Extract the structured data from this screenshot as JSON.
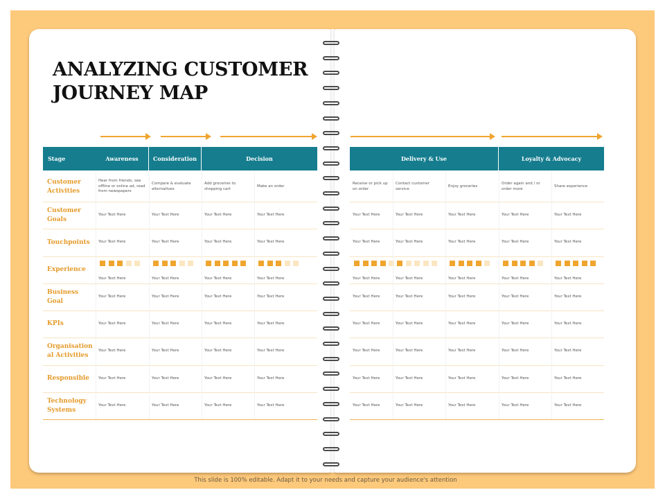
{
  "title_lines": [
    "ANALYZING CUSTOMER",
    "JOURNEY MAP"
  ],
  "stages": {
    "stage_label": "Stage",
    "awareness": "Awareness",
    "consideration": "Consideration",
    "decision": "Decision",
    "delivery": "Delivery & Use",
    "loyalty": "Loyalty & Advocacy"
  },
  "rows": [
    {
      "label": "Customer Activities",
      "cells": [
        "Hear from friends, see offline or online ad, read from newspapers",
        "Compare & evaluate alternatives",
        "Add groceries to shopping cart",
        "Make an order",
        "Receive or pick up on order",
        "Contact customer service",
        "Enjoy groceries",
        "Order again and / or order more",
        "Share experience"
      ]
    },
    {
      "label": "Customer Goals",
      "cells": [
        "Your Text Here",
        "Your Text Here",
        "Your Text Here",
        "Your Text Here",
        "Your Text Here",
        "Your Text Here",
        "Your Text Here",
        "Your Text Here",
        "Your Text Here"
      ]
    },
    {
      "label": "Touchpoints",
      "cells": [
        "Your Text Here",
        "Your Text Here",
        "Your Text Here",
        "Your Text Here",
        "Your Text Here",
        "Your Text Here",
        "Your Text Here",
        "Your Text Here",
        "Your Text Here"
      ]
    },
    {
      "label": "Experience",
      "cells": [
        "Your Text Here",
        "Your Text Here",
        "Your Text Here",
        "Your Text Here",
        "Your Text Here",
        "Your Text Here",
        "Your Text Here",
        "Your Text Here",
        "Your Text Here"
      ],
      "ratings": [
        3,
        3,
        5,
        3,
        4,
        1,
        4,
        4,
        5
      ],
      "rating_max": 5
    },
    {
      "label": "Business Goal",
      "cells": [
        "Your Text Here",
        "Your Text Here",
        "Your Text Here",
        "Your Text Here",
        "Your Text Here",
        "Your Text Here",
        "Your Text Here",
        "Your Text Here",
        "Your Text Here"
      ]
    },
    {
      "label": "KPIs",
      "cells": [
        "Your Text Here",
        "Your Text Here",
        "Your Text Here",
        "Your Text Here",
        "Your Text Here",
        "Your Text Here",
        "Your Text Here",
        "Your Text Here",
        "Your Text Here"
      ]
    },
    {
      "label": "Organisation al Activities",
      "cells": [
        "Your Text Here",
        "Your Text Here",
        "Your Text Here",
        "Your Text Here",
        "Your Text Here",
        "Your Text Here",
        "Your Text Here",
        "Your Text Here",
        "Your Text Here"
      ]
    },
    {
      "label": "Responsible",
      "cells": [
        "Your Text Here",
        "Your Text Here",
        "Your Text Here",
        "Your Text Here",
        "Your Text Here",
        "Your Text Here",
        "Your Text Here",
        "Your Text Here",
        "Your Text Here"
      ]
    },
    {
      "label": "Technology Systems",
      "cells": [
        "Your Text Here",
        "Your Text Here",
        "Your Text Here",
        "Your Text Here",
        "Your Text Here",
        "Your Text Here",
        "Your Text Here",
        "Your Text Here",
        "Your Text Here"
      ]
    }
  ],
  "colors": {
    "header_teal": "#157d8e",
    "accent_orange": "#f0a52f",
    "label_orange": "#e59b2a",
    "rating_filled": "#f0a52f",
    "rating_empty": "#fbe6c2",
    "frame": "#fdc97b"
  },
  "footer": "This slide is 100% editable. Adapt it to your needs and capture your audience's attention"
}
